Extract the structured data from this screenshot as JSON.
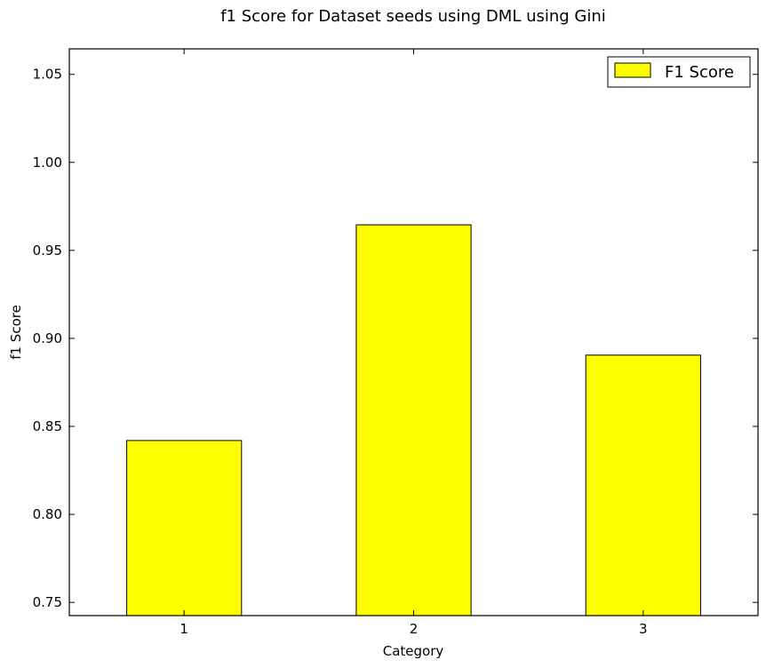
{
  "chart_data": {
    "type": "bar",
    "title": "f1 Score for Dataset seeds using DML using Gini",
    "xlabel": "Category",
    "ylabel": "f1 Score",
    "categories": [
      "1",
      "2",
      "3"
    ],
    "series": [
      {
        "name": "F1 Score",
        "values": [
          0.842,
          0.9645,
          0.8905
        ]
      }
    ],
    "ylim": [
      0.7425,
      1.0645
    ],
    "yticks": [
      0.75,
      0.8,
      0.85,
      0.9,
      0.95,
      1.0,
      1.05
    ],
    "ytick_labels": [
      "0.75",
      "0.80",
      "0.85",
      "0.90",
      "0.95",
      "1.00",
      "1.05"
    ],
    "grid": false,
    "legend_position": "top-right",
    "colors": {
      "bar_fill": "#ffff00",
      "bar_edge": "#000000"
    }
  }
}
